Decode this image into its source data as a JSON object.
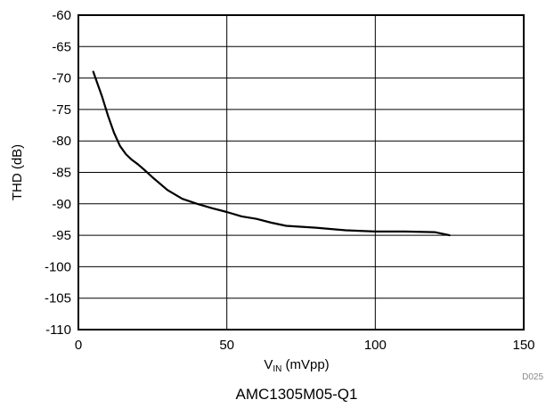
{
  "chart_data": {
    "type": "line",
    "ylabel": "THD (dB)",
    "xlabel": {
      "main": "V",
      "sub": "IN",
      "rest": " (mVpp)"
    },
    "xlim": [
      0,
      150
    ],
    "ylim": [
      -110,
      -60
    ],
    "x_ticks": [
      0,
      50,
      100,
      150
    ],
    "x_tick_labels": [
      "0",
      "50",
      "100",
      "150"
    ],
    "y_ticks": [
      -60,
      -65,
      -70,
      -75,
      -80,
      -85,
      -90,
      -95,
      -100,
      -105,
      -110
    ],
    "y_tick_labels": [
      "-60",
      "-65",
      "-70",
      "-75",
      "-80",
      "-85",
      "-90",
      "-95",
      "-100",
      "-105",
      "-110"
    ],
    "grid": true,
    "series": [
      {
        "color": "#000000",
        "x": [
          5,
          8,
          10,
          12,
          14,
          16,
          18,
          20,
          22,
          25,
          30,
          35,
          40,
          45,
          50,
          55,
          60,
          65,
          70,
          80,
          90,
          100,
          110,
          120,
          125
        ],
        "y": [
          -69,
          -73,
          -76,
          -78.7,
          -80.8,
          -82.1,
          -83,
          -83.7,
          -84.5,
          -85.8,
          -87.8,
          -89.2,
          -90,
          -90.7,
          -91.3,
          -92,
          -92.4,
          -93,
          -93.5,
          -93.8,
          -94.2,
          -94.4,
          -94.4,
          -94.5,
          -95
        ]
      }
    ]
  },
  "figure_code": "D025",
  "caption": "AMC1305M05-Q1"
}
